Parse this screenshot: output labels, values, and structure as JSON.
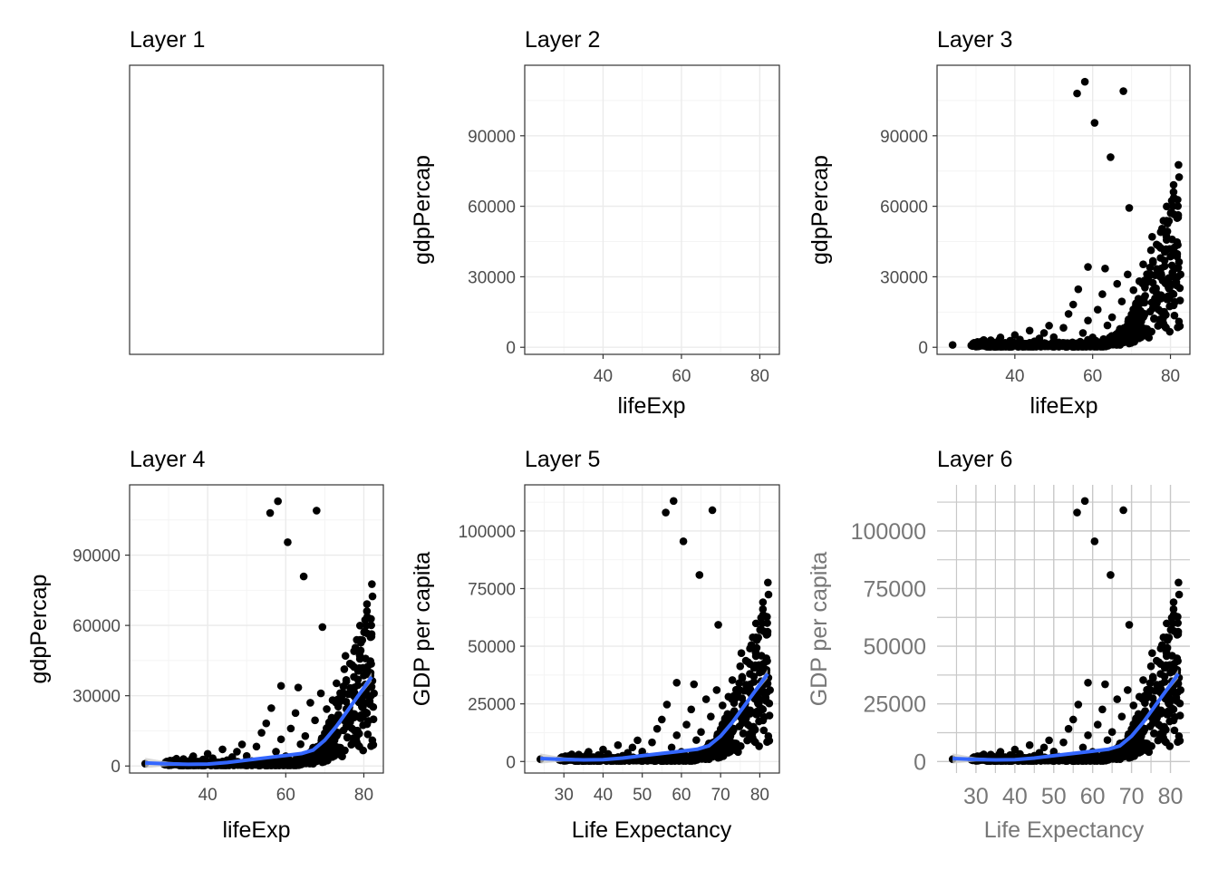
{
  "panels": [
    {
      "title": "Layer 1"
    },
    {
      "title": "Layer 2"
    },
    {
      "title": "Layer 3"
    },
    {
      "title": "Layer 4"
    },
    {
      "title": "Layer 5"
    },
    {
      "title": "Layer 6"
    }
  ],
  "colors": {
    "points": "#000000",
    "smooth_line": "#3366FF",
    "ribbon": "#cccccc",
    "grid_major": "#ebebeb",
    "grid_layer6": "#c8c8c8",
    "panel_border": "#333333"
  },
  "chart_data": [
    {
      "panel": "Layer 1",
      "type": "scatter",
      "title": "Layer 1",
      "xlabel": "",
      "ylabel": "",
      "axes_shown": false,
      "points_shown": false,
      "smooth_shown": false
    },
    {
      "panel": "Layer 2",
      "type": "scatter",
      "title": "Layer 2",
      "xlabel": "lifeExp",
      "ylabel": "gdpPercap",
      "xlim": [
        20,
        85
      ],
      "ylim": [
        -3000,
        120000
      ],
      "xticks": [
        40,
        60,
        80
      ],
      "yticks": [
        0,
        30000,
        60000,
        90000
      ],
      "points_shown": false,
      "smooth_shown": false,
      "grid": true
    },
    {
      "panel": "Layer 3",
      "type": "scatter",
      "title": "Layer 3",
      "xlabel": "lifeExp",
      "ylabel": "gdpPercap",
      "xlim": [
        20,
        85
      ],
      "ylim": [
        -3000,
        120000
      ],
      "xticks": [
        40,
        60,
        80
      ],
      "yticks": [
        0,
        30000,
        60000,
        90000
      ],
      "points_shown": true,
      "smooth_shown": false,
      "grid": true
    },
    {
      "panel": "Layer 4",
      "type": "scatter",
      "title": "Layer 4",
      "xlabel": "lifeExp",
      "ylabel": "gdpPercap",
      "xlim": [
        20,
        85
      ],
      "ylim": [
        -3000,
        120000
      ],
      "xticks": [
        40,
        60,
        80
      ],
      "yticks": [
        0,
        30000,
        60000,
        90000
      ],
      "points_shown": true,
      "smooth_shown": true,
      "grid": true
    },
    {
      "panel": "Layer 5",
      "type": "scatter",
      "title": "Layer 5",
      "xlabel": "Life Expectancy",
      "ylabel": "GDP per capita",
      "xlim": [
        20,
        85
      ],
      "ylim": [
        -5000,
        120000
      ],
      "xticks": [
        30,
        40,
        50,
        60,
        70,
        80
      ],
      "yticks": [
        0,
        25000,
        50000,
        75000,
        100000
      ],
      "points_shown": true,
      "smooth_shown": true,
      "grid": true
    },
    {
      "panel": "Layer 6",
      "type": "scatter",
      "title": "Layer 6",
      "xlabel": "Life Expectancy",
      "ylabel": "GDP per capita",
      "xlim": [
        20,
        85
      ],
      "ylim": [
        -5000,
        120000
      ],
      "xticks": [
        30,
        40,
        50,
        60,
        70,
        80
      ],
      "yticks": [
        0,
        25000,
        50000,
        75000,
        100000
      ],
      "points_shown": true,
      "smooth_shown": true,
      "grid": true,
      "minimal_theme": true
    }
  ],
  "points": [
    [
      56,
      108000
    ],
    [
      58,
      113000
    ],
    [
      60.5,
      95500
    ],
    [
      64.6,
      80900
    ],
    [
      67.9,
      109000
    ],
    [
      69.4,
      59300
    ],
    [
      58.8,
      34200
    ],
    [
      63.2,
      33500
    ],
    [
      77.5,
      49000
    ],
    [
      79.2,
      49300
    ],
    [
      75.3,
      47000
    ],
    [
      81.1,
      40000
    ],
    [
      24,
      1000
    ],
    [
      28.8,
      780
    ],
    [
      30.0,
      1100
    ],
    [
      31.3,
      2400
    ],
    [
      32.5,
      1400
    ],
    [
      33.8,
      3000
    ],
    [
      35.0,
      700
    ],
    [
      36.3,
      4200
    ],
    [
      37.5,
      1900
    ],
    [
      38.8,
      2800
    ],
    [
      40.0,
      5200
    ],
    [
      41.3,
      3300
    ],
    [
      42.5,
      1500
    ],
    [
      43.8,
      7100
    ],
    [
      45.0,
      2500
    ],
    [
      46.3,
      3800
    ],
    [
      47.5,
      6100
    ],
    [
      48.8,
      9200
    ],
    [
      50.0,
      4300
    ],
    [
      51.3,
      2100
    ],
    [
      52.5,
      8300
    ],
    [
      53.8,
      14200
    ],
    [
      55.0,
      18200
    ],
    [
      56.3,
      24700
    ],
    [
      57.5,
      6100
    ],
    [
      58.8,
      11400
    ],
    [
      60.0,
      4200
    ],
    [
      61.3,
      16000
    ],
    [
      62.5,
      22600
    ],
    [
      63.8,
      9300
    ],
    [
      65.0,
      12800
    ],
    [
      66.3,
      27000
    ],
    [
      67.5,
      19500
    ],
    [
      68.8,
      8900
    ],
    [
      69.0,
      31000
    ],
    [
      70.0,
      14000
    ],
    [
      70.5,
      24300
    ],
    [
      71.0,
      5200
    ],
    [
      71.5,
      19200
    ],
    [
      72.0,
      28100
    ],
    [
      72.5,
      11000
    ],
    [
      73.0,
      35300
    ],
    [
      73.5,
      21900
    ],
    [
      74.0,
      7800
    ],
    [
      74.5,
      30200
    ],
    [
      75.0,
      41300
    ],
    [
      75.5,
      16700
    ],
    [
      76.0,
      24800
    ],
    [
      76.5,
      33300
    ],
    [
      77.0,
      43100
    ],
    [
      77.5,
      20700
    ],
    [
      78.0,
      28400
    ],
    [
      78.5,
      36900
    ],
    [
      79.0,
      45700
    ],
    [
      79.5,
      25400
    ],
    [
      80.0,
      38600
    ],
    [
      80.5,
      31800
    ],
    [
      81.0,
      42500
    ],
    [
      81.5,
      27700
    ],
    [
      82.0,
      33800
    ],
    [
      82.6,
      31000
    ],
    [
      82.2,
      36300
    ],
    [
      81.7,
      38600
    ],
    [
      80.8,
      22600
    ],
    [
      79.8,
      17400
    ],
    [
      78.8,
      13800
    ],
    [
      77.8,
      10900
    ],
    [
      76.8,
      9100
    ],
    [
      75.8,
      12300
    ],
    [
      74.8,
      15200
    ],
    [
      73.8,
      6200
    ],
    [
      72.8,
      8300
    ],
    [
      71.8,
      10100
    ],
    [
      70.8,
      7500
    ],
    [
      69.8,
      5600
    ],
    [
      68.8,
      6900
    ],
    [
      67.8,
      4600
    ],
    [
      66.8,
      5300
    ],
    [
      65.8,
      3100
    ],
    [
      64.8,
      4000
    ],
    [
      63.8,
      2600
    ],
    [
      62.8,
      3500
    ],
    [
      61.8,
      1900
    ],
    [
      60.8,
      2800
    ],
    [
      59.8,
      1200
    ],
    [
      58.8,
      3200
    ],
    [
      57.8,
      1700
    ],
    [
      56.8,
      2400
    ],
    [
      55.8,
      1000
    ],
    [
      54.8,
      2100
    ],
    [
      53.8,
      1300
    ],
    [
      52.8,
      1800
    ],
    [
      51.8,
      600
    ],
    [
      50.8,
      1500
    ],
    [
      49.8,
      2200
    ],
    [
      48.8,
      900
    ],
    [
      47.8,
      1700
    ],
    [
      46.8,
      600
    ],
    [
      45.8,
      1400
    ],
    [
      44.8,
      1000
    ],
    [
      43.8,
      1900
    ],
    [
      42.8,
      700
    ],
    [
      41.8,
      1300
    ],
    [
      40.8,
      900
    ],
    [
      39.8,
      2000
    ],
    [
      38.8,
      500
    ],
    [
      37.8,
      1300
    ],
    [
      36.8,
      800
    ],
    [
      35.8,
      1600
    ],
    [
      34.8,
      600
    ],
    [
      33.8,
      1100
    ],
    [
      32.8,
      400
    ],
    [
      31.8,
      900
    ],
    [
      30.8,
      1300
    ],
    [
      29.8,
      500
    ],
    [
      29.5,
      1900
    ],
    [
      30.4,
      2300
    ],
    [
      32.0,
      3100
    ],
    [
      34.5,
      2100
    ],
    [
      36.0,
      3200
    ]
  ],
  "smooth": [
    [
      24,
      1300
    ],
    [
      30,
      900
    ],
    [
      35,
      700
    ],
    [
      40,
      800
    ],
    [
      45,
      1500
    ],
    [
      50,
      2500
    ],
    [
      55,
      3500
    ],
    [
      60,
      4500
    ],
    [
      64,
      5300
    ],
    [
      67,
      6800
    ],
    [
      70,
      11000
    ],
    [
      73,
      17000
    ],
    [
      76,
      24000
    ],
    [
      79,
      31000
    ],
    [
      82,
      38000
    ]
  ],
  "ribbon_halfwidth": [
    2200,
    900,
    600,
    500,
    400,
    400,
    400,
    500,
    600,
    700,
    800,
    900,
    1000,
    1200,
    2000
  ]
}
